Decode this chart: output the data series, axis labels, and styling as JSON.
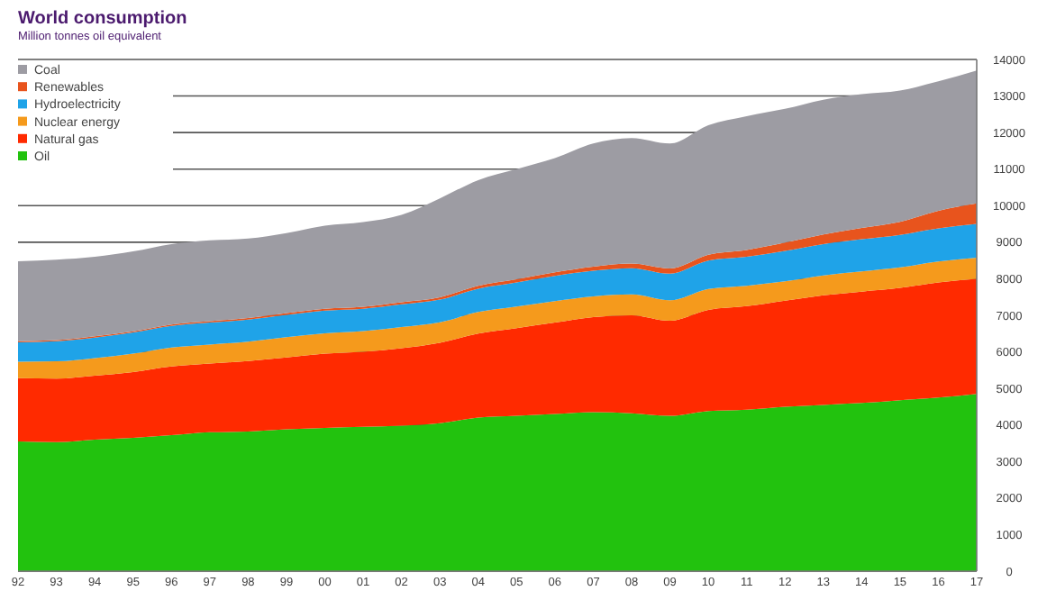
{
  "chart_data": {
    "type": "area",
    "stacked": true,
    "title": "World consumption",
    "subtitle": "Million tonnes oil equivalent",
    "categories": [
      "92",
      "93",
      "94",
      "95",
      "96",
      "97",
      "98",
      "99",
      "00",
      "01",
      "02",
      "03",
      "04",
      "05",
      "06",
      "07",
      "08",
      "09",
      "10",
      "11",
      "12",
      "13",
      "14",
      "15",
      "16",
      "17"
    ],
    "series": [
      {
        "name": "Oil",
        "color": "#22c20e",
        "values": [
          3550,
          3530,
          3600,
          3650,
          3720,
          3800,
          3820,
          3880,
          3920,
          3950,
          3980,
          4050,
          4200,
          4250,
          4300,
          4350,
          4320,
          4250,
          4380,
          4420,
          4500,
          4550,
          4600,
          4680,
          4750,
          4850
        ]
      },
      {
        "name": "Natural gas",
        "color": "#ff2a00",
        "values": [
          1730,
          1740,
          1750,
          1800,
          1880,
          1880,
          1930,
          1970,
          2030,
          2050,
          2120,
          2200,
          2300,
          2400,
          2500,
          2600,
          2680,
          2600,
          2770,
          2830,
          2900,
          3000,
          3050,
          3070,
          3150,
          3150
        ]
      },
      {
        "name": "Nuclear energy",
        "color": "#f59a1c",
        "values": [
          450,
          470,
          480,
          500,
          520,
          520,
          530,
          550,
          560,
          570,
          580,
          560,
          590,
          590,
          590,
          570,
          570,
          560,
          570,
          560,
          530,
          540,
          550,
          560,
          570,
          580
        ]
      },
      {
        "name": "Hydroelectricity",
        "color": "#1fa3e8",
        "values": [
          530,
          550,
          560,
          580,
          590,
          600,
          600,
          610,
          620,
          610,
          620,
          620,
          640,
          660,
          690,
          700,
          720,
          730,
          780,
          790,
          830,
          860,
          880,
          890,
          910,
          920
        ]
      },
      {
        "name": "Renewables",
        "color": "#e8541d",
        "values": [
          30,
          30,
          35,
          35,
          40,
          40,
          45,
          50,
          50,
          55,
          60,
          65,
          75,
          85,
          95,
          110,
          125,
          140,
          160,
          190,
          230,
          260,
          310,
          360,
          480,
          560
        ]
      },
      {
        "name": "Coal",
        "color": "#9d9ca3",
        "values": [
          2190,
          2200,
          2175,
          2185,
          2200,
          2210,
          2175,
          2190,
          2270,
          2315,
          2390,
          2705,
          2895,
          3015,
          3125,
          3370,
          3435,
          3420,
          3540,
          3660,
          3660,
          3690,
          3660,
          3590,
          3540,
          3640
        ]
      }
    ],
    "ylim": [
      0,
      14000
    ],
    "yticks": [
      0,
      1000,
      2000,
      3000,
      4000,
      5000,
      6000,
      7000,
      8000,
      9000,
      10000,
      11000,
      12000,
      13000,
      14000
    ],
    "grid": "y",
    "legend": "top left"
  }
}
